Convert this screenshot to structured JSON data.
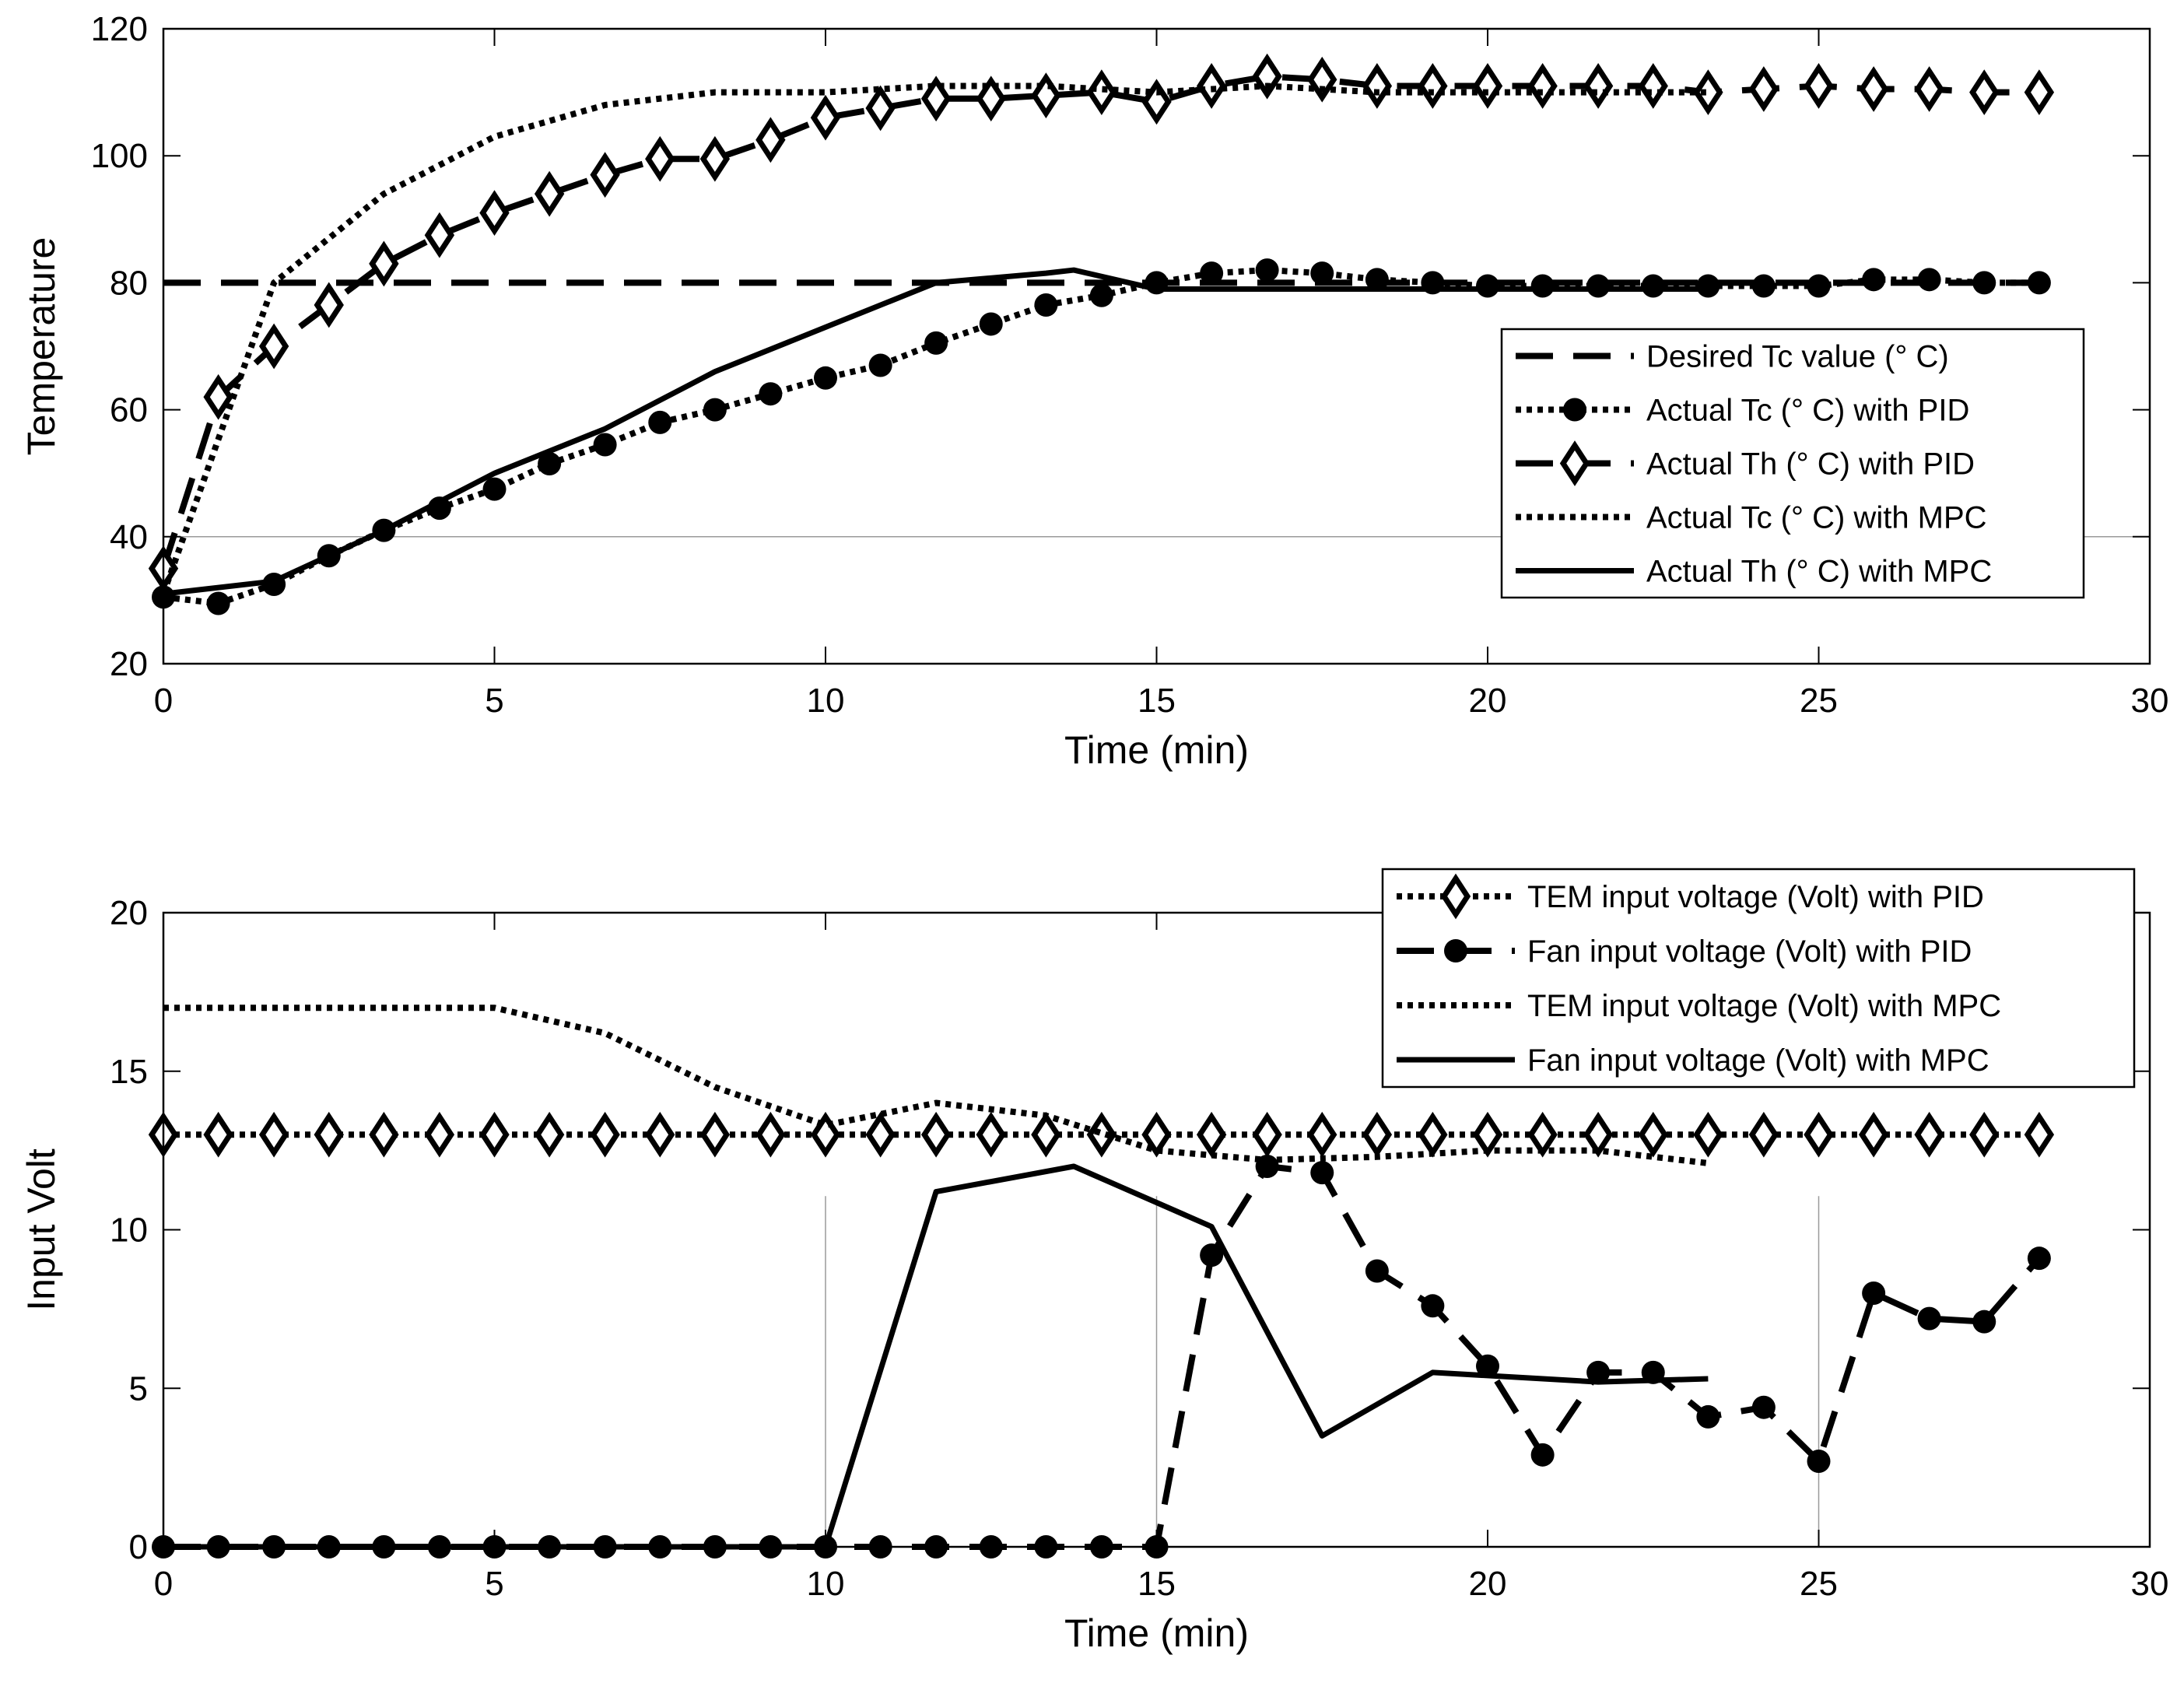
{
  "chart_data": [
    {
      "type": "line",
      "id": "temperature",
      "xlabel": "Time (min)",
      "ylabel": "Temperature",
      "xlim": [
        0,
        30
      ],
      "ylim": [
        20,
        120
      ],
      "xticks": [
        "0",
        "5",
        "10",
        "15",
        "20",
        "25",
        "30"
      ],
      "yticks": [
        "20",
        "40",
        "60",
        "80",
        "100",
        "120"
      ],
      "gridlines": {
        "x": [],
        "y": [
          40
        ]
      },
      "legend_position": "right-middle",
      "series": [
        {
          "name": "Desired Tc value (° C)",
          "style": "dashed",
          "marker": "none",
          "x": [
            0,
            28.3
          ],
          "y": [
            80,
            80
          ]
        },
        {
          "name": "Actual Tc (° C) with PID",
          "style": "dotted",
          "marker": "circle",
          "x": [
            0,
            0.83,
            1.67,
            2.5,
            3.33,
            4.17,
            5,
            5.83,
            6.67,
            7.5,
            8.33,
            9.17,
            10,
            10.83,
            11.67,
            12.5,
            13.33,
            14.17,
            15,
            15.83,
            16.67,
            17.5,
            18.33,
            19.17,
            20,
            20.83,
            21.67,
            22.5,
            23.33,
            24.17,
            25,
            25.83,
            26.67,
            27.5,
            28.33
          ],
          "y": [
            30.5,
            29.5,
            32.5,
            37,
            41,
            44.5,
            47.5,
            51.5,
            54.5,
            58,
            60,
            62.5,
            65,
            67,
            70.5,
            73.5,
            76.5,
            78,
            80,
            81.5,
            82,
            81.5,
            80.5,
            80,
            79.5,
            79.5,
            79.5,
            79.5,
            79.5,
            79.5,
            79.5,
            80.5,
            80.5,
            80,
            80
          ]
        },
        {
          "name": "Actual Th (° C) with PID",
          "style": "dashed",
          "marker": "diamond",
          "x": [
            0,
            0.83,
            1.67,
            2.5,
            3.33,
            4.17,
            5,
            5.83,
            6.67,
            7.5,
            8.33,
            9.17,
            10,
            10.83,
            11.67,
            12.5,
            13.33,
            14.17,
            15,
            15.83,
            16.67,
            17.5,
            18.33,
            19.17,
            20,
            20.83,
            21.67,
            22.5,
            23.33,
            24.17,
            25,
            25.83,
            26.67,
            27.5,
            28.33
          ],
          "y": [
            35,
            62,
            70,
            76.5,
            83,
            87.5,
            91,
            94,
            97,
            99.5,
            99.5,
            102.5,
            106,
            107.5,
            109,
            109,
            109.5,
            110,
            108.5,
            111,
            112.5,
            112,
            111,
            111,
            111,
            111,
            111,
            111,
            110,
            110.5,
            111,
            110.5,
            110.5,
            110,
            110
          ]
        },
        {
          "name": "Actual Tc (° C) with MPC",
          "style": "dotted",
          "marker": "none",
          "x": [
            0,
            1.67,
            3.33,
            5,
            6.67,
            8.33,
            10,
            11.67,
            13.33,
            15,
            16.67,
            18.33,
            20,
            21.67,
            23.33
          ],
          "y": [
            31,
            80,
            94,
            103,
            108,
            110,
            110,
            111,
            111,
            110,
            111,
            110,
            110,
            110,
            110
          ]
        },
        {
          "name": "Actual Th (° C) with MPC",
          "style": "solid",
          "marker": "none",
          "x": [
            0,
            1.67,
            3.33,
            5,
            6.67,
            8.33,
            10,
            11.67,
            13.33,
            13.75,
            15,
            15.83,
            16.67,
            18.33,
            20,
            21.67,
            23.33
          ],
          "y": [
            31,
            33,
            41,
            50,
            57,
            66,
            73,
            80,
            81.5,
            82,
            79,
            79,
            79,
            79,
            79,
            79,
            79
          ]
        }
      ]
    },
    {
      "type": "line",
      "id": "voltage",
      "xlabel": "Time (min)",
      "ylabel": "Input Volt",
      "xlim": [
        0,
        30
      ],
      "ylim": [
        0,
        20
      ],
      "xticks": [
        "0",
        "5",
        "10",
        "15",
        "20",
        "25",
        "30"
      ],
      "yticks": [
        "0",
        "5",
        "10",
        "15",
        "20"
      ],
      "gridlines": {
        "x": [
          10,
          15,
          25
        ],
        "y": []
      },
      "legend_position": "top-right",
      "series": [
        {
          "name": "TEM input voltage (Volt) with PID",
          "style": "dotted",
          "marker": "diamond",
          "x": [
            0,
            0.83,
            1.67,
            2.5,
            3.33,
            4.17,
            5,
            5.83,
            6.67,
            7.5,
            8.33,
            9.17,
            10,
            10.83,
            11.67,
            12.5,
            13.33,
            14.17,
            15,
            15.83,
            16.67,
            17.5,
            18.33,
            19.17,
            20,
            20.83,
            21.67,
            22.5,
            23.33,
            24.17,
            25,
            25.83,
            26.67,
            27.5,
            28.33
          ],
          "y": [
            13,
            13,
            13,
            13,
            13,
            13,
            13,
            13,
            13,
            13,
            13,
            13,
            13,
            13,
            13,
            13,
            13,
            13,
            13,
            13,
            13,
            13,
            13,
            13,
            13,
            13,
            13,
            13,
            13,
            13,
            13,
            13,
            13,
            13,
            13
          ]
        },
        {
          "name": "Fan input voltage (Volt) with PID",
          "style": "dashed",
          "marker": "circle",
          "x": [
            0,
            0.83,
            1.67,
            2.5,
            3.33,
            4.17,
            5,
            5.83,
            6.67,
            7.5,
            8.33,
            9.17,
            10,
            10.83,
            11.67,
            12.5,
            13.33,
            14.17,
            15,
            15.83,
            16.67,
            17.5,
            18.33,
            19.17,
            20,
            20.83,
            21.67,
            22.5,
            23.33,
            24.17,
            25,
            25.83,
            26.67,
            27.5,
            28.33
          ],
          "y": [
            0,
            0,
            0,
            0,
            0,
            0,
            0,
            0,
            0,
            0,
            0,
            0,
            0,
            0,
            0,
            0,
            0,
            0,
            0,
            9.2,
            12,
            11.8,
            8.7,
            7.6,
            5.7,
            2.9,
            5.5,
            5.5,
            4.1,
            4.4,
            2.7,
            8,
            7.2,
            7.1,
            9.1
          ]
        },
        {
          "name": "TEM input voltage (Volt) with MPC",
          "style": "dotted",
          "marker": "none",
          "x": [
            0,
            1.67,
            3.33,
            5,
            6.67,
            8.33,
            10,
            11.67,
            13.33,
            15,
            16.67,
            18.33,
            20,
            21.67,
            23.33
          ],
          "y": [
            17,
            17,
            17,
            17,
            16.2,
            14.5,
            13.3,
            14,
            13.6,
            12.5,
            12.2,
            12.3,
            12.5,
            12.5,
            12.1
          ]
        },
        {
          "name": "Fan input voltage (Volt) with MPC",
          "style": "solid",
          "marker": "none",
          "x": [
            0,
            5,
            10,
            11.67,
            13.75,
            15.83,
            17.5,
            19.17,
            21.67,
            23.33
          ],
          "y": [
            0,
            0,
            0,
            11.2,
            12,
            10.1,
            3.5,
            5.5,
            5.2,
            5.3
          ]
        }
      ]
    }
  ]
}
